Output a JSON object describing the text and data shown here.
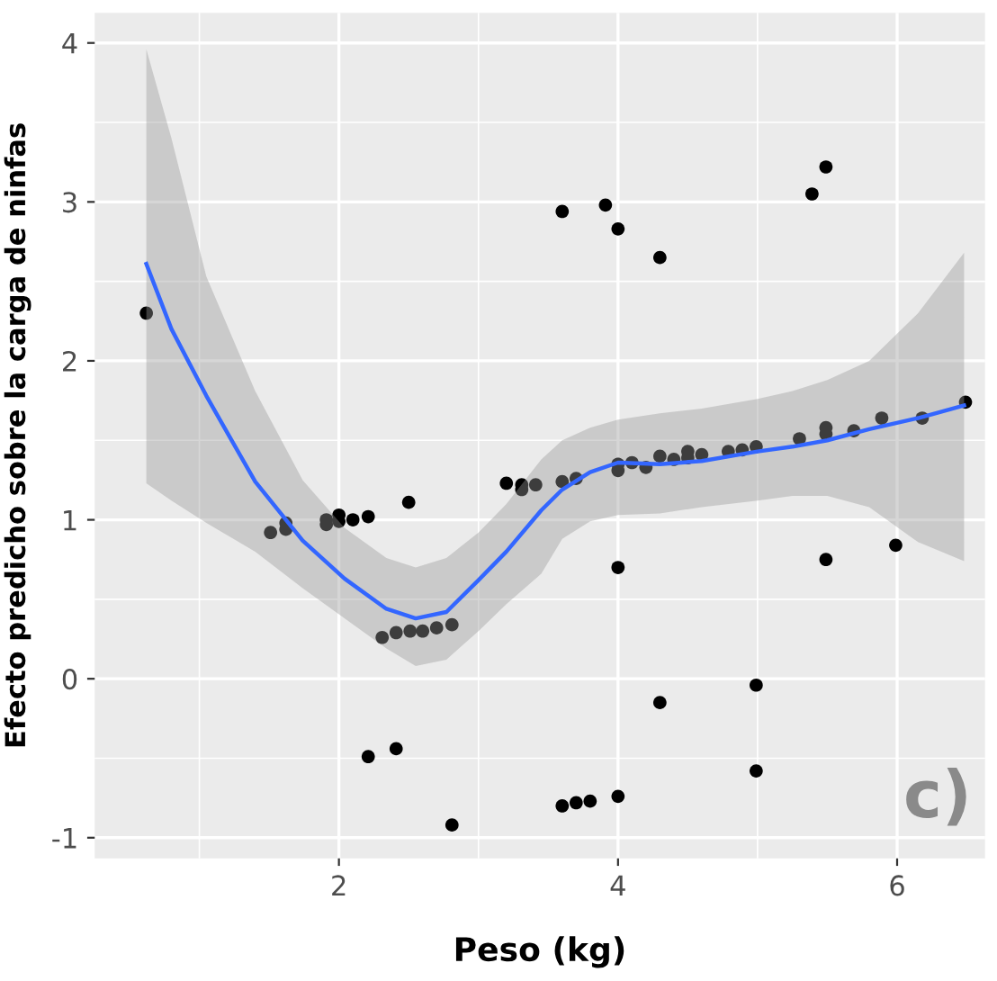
{
  "chart_data": {
    "type": "scatter",
    "xlabel": "Peso (kg)",
    "ylabel": "Efecto predicho sobre la carga de ninfas",
    "xlim": [
      0.25,
      6.63
    ],
    "ylim": [
      -1.13,
      4.19
    ],
    "xticks": [
      2,
      4,
      6
    ],
    "yticks": [
      -1,
      0,
      1,
      2,
      3,
      4
    ],
    "grid": true,
    "annotations": [
      "c)"
    ],
    "series": [
      {
        "marker": "circle",
        "color": "#000000",
        "x": [
          0.62,
          1.51,
          1.62,
          1.62,
          1.91,
          1.91,
          2.0,
          2.0,
          2.1,
          2.21,
          2.5,
          2.31,
          2.41,
          2.51,
          2.6,
          2.7,
          2.81,
          2.21,
          2.41,
          2.81,
          3.2,
          3.31,
          3.31,
          3.41,
          3.6,
          3.91,
          4.0,
          4.3,
          5.39,
          5.49,
          3.6,
          3.7,
          4.0,
          4.0,
          4.1,
          4.2,
          4.3,
          4.4,
          4.5,
          4.5,
          4.6,
          4.79,
          4.89,
          4.99,
          5.3,
          5.49,
          5.49,
          5.69,
          5.89,
          6.18,
          6.49,
          4.0,
          5.49,
          5.99,
          4.3,
          4.99,
          4.99,
          3.6,
          3.7,
          3.8,
          4.0
        ],
        "values": [
          2.3,
          0.92,
          0.94,
          0.98,
          1.0,
          0.97,
          1.03,
          0.99,
          1.0,
          1.02,
          1.11,
          0.26,
          0.29,
          0.3,
          0.3,
          0.32,
          0.34,
          -0.49,
          -0.44,
          -0.92,
          1.23,
          1.22,
          1.19,
          1.22,
          2.94,
          2.98,
          2.83,
          2.65,
          3.05,
          3.22,
          1.24,
          1.26,
          1.35,
          1.31,
          1.36,
          1.33,
          1.4,
          1.38,
          1.43,
          1.39,
          1.41,
          1.43,
          1.44,
          1.46,
          1.51,
          1.58,
          1.54,
          1.56,
          1.64,
          1.64,
          1.74,
          0.7,
          0.75,
          0.84,
          -0.15,
          -0.04,
          -0.58,
          -0.8,
          -0.78,
          -0.77,
          -0.74
        ]
      },
      {
        "type": "line",
        "color": "#3366ff",
        "x": [
          0.62,
          0.8,
          1.05,
          1.4,
          1.74,
          2.04,
          2.34,
          2.55,
          2.77,
          3.0,
          3.2,
          3.45,
          3.6,
          3.8,
          4.0,
          4.3,
          4.6,
          5.0,
          5.25,
          5.5,
          5.8,
          6.15,
          6.48
        ],
        "values": [
          2.61,
          2.2,
          1.78,
          1.24,
          0.87,
          0.63,
          0.44,
          0.38,
          0.42,
          0.62,
          0.8,
          1.06,
          1.19,
          1.3,
          1.36,
          1.35,
          1.37,
          1.43,
          1.46,
          1.5,
          1.57,
          1.64,
          1.72
        ],
        "upper": [
          3.96,
          3.4,
          2.53,
          1.81,
          1.25,
          0.95,
          0.76,
          0.7,
          0.76,
          0.92,
          1.1,
          1.38,
          1.5,
          1.58,
          1.63,
          1.67,
          1.7,
          1.76,
          1.81,
          1.88,
          2.0,
          2.3,
          2.68
        ],
        "lower": [
          1.23,
          1.12,
          0.98,
          0.8,
          0.57,
          0.38,
          0.19,
          0.08,
          0.12,
          0.3,
          0.47,
          0.66,
          0.88,
          0.99,
          1.03,
          1.04,
          1.08,
          1.12,
          1.15,
          1.15,
          1.08,
          0.86,
          0.74
        ]
      }
    ]
  }
}
